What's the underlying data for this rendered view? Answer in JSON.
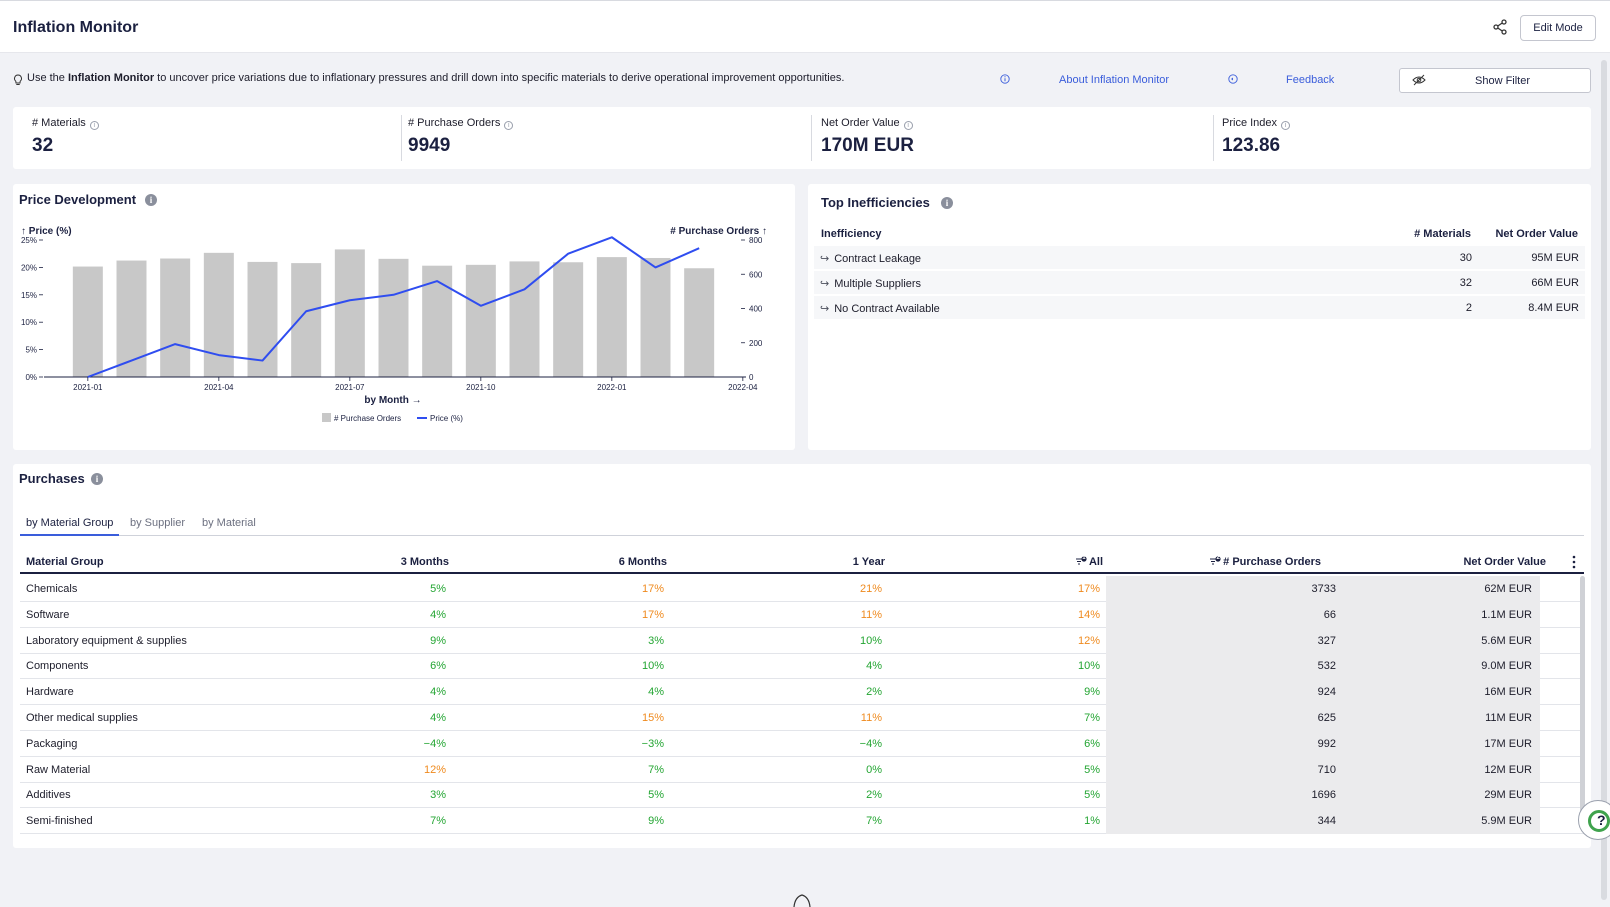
{
  "header": {
    "title": "Inflation Monitor",
    "share_icon": "share-icon",
    "edit_button": "Edit Mode"
  },
  "info_bar": {
    "intro_prefix": "Use the ",
    "intro_bold": "Inflation Monitor",
    "intro_suffix": " to uncover price variations due to inflationary pressures and drill down into specific materials to derive operational improvement opportunities.",
    "about_link": "About Inflation Monitor",
    "feedback_link": "Feedback",
    "show_filter": "Show Filter"
  },
  "kpis": [
    {
      "label": "# Materials",
      "value": "32"
    },
    {
      "label": "# Purchase Orders",
      "value": "9949"
    },
    {
      "label": "Net Order Value",
      "value": "170M EUR"
    },
    {
      "label": "Price Index",
      "value": "123.86"
    }
  ],
  "price_development": {
    "title": "Price Development",
    "info": "i"
  },
  "chart_data": {
    "type": "bar",
    "x": [
      "2021-01",
      "2021-02",
      "2021-03",
      "2021-04",
      "2021-05",
      "2021-06",
      "2021-07",
      "2021-08",
      "2021-09",
      "2021-10",
      "2021-11",
      "2021-12",
      "2022-01",
      "2022-02",
      "2022-03"
    ],
    "x_ticks": [
      "2021-01",
      "2021-04",
      "2021-07",
      "2021-10",
      "2022-01",
      "2022-04"
    ],
    "xlabel": "by Month →",
    "y_left_label": "↑ Price (%)",
    "y_right_label": "# Purchase Orders ↑",
    "y_left_ticks": [
      "0%",
      "5%",
      "10%",
      "15%",
      "20%",
      "25%"
    ],
    "y_right_ticks": [
      "0",
      "200",
      "400",
      "600",
      "800"
    ],
    "ylim_left": [
      0,
      25
    ],
    "ylim_right": [
      0,
      800
    ],
    "series": [
      {
        "name": "# Purchase Orders",
        "type": "bar",
        "axis": "right",
        "color": "#c8c8c8",
        "values": [
          645,
          680,
          692,
          725,
          672,
          665,
          745,
          690,
          650,
          655,
          675,
          670,
          700,
          695,
          635
        ]
      },
      {
        "name": "Price (%)",
        "type": "line",
        "axis": "left",
        "color": "#2f4df0",
        "values": [
          0,
          3,
          6,
          4,
          3,
          12,
          14,
          15,
          17.5,
          13,
          16,
          22.5,
          25.5,
          20,
          23.5
        ]
      }
    ],
    "legend": "bottom-center",
    "grid": false
  },
  "top_inefficiencies": {
    "title": "Top Inefficiencies",
    "info": "i",
    "headers": {
      "name": "Inefficiency",
      "materials": "# Materials",
      "value": "Net Order Value"
    },
    "arrow": "↪",
    "rows": [
      {
        "name": "Contract Leakage",
        "materials": "30",
        "value": "95M EUR"
      },
      {
        "name": "Multiple Suppliers",
        "materials": "32",
        "value": "66M EUR"
      },
      {
        "name": "No Contract Available",
        "materials": "2",
        "value": "8.4M EUR"
      }
    ]
  },
  "purchases": {
    "title": "Purchases",
    "info": "i",
    "tabs": [
      "by Material Group",
      "by Supplier",
      "by Material"
    ],
    "headers": {
      "group": "Material Group",
      "m3": "3 Months",
      "m6": "6 Months",
      "y1": "1 Year",
      "all": "All",
      "all_sort_rank": "1",
      "orders": "# Purchase Orders",
      "orders_sort_rank": "2",
      "value": "Net Order Value"
    },
    "rows": [
      {
        "group": "Chemicals",
        "m3": "5%",
        "m6": "17%",
        "y1": "21%",
        "all": "17%",
        "orders": "3733",
        "value": "62M EUR",
        "c": [
          "g",
          "o",
          "o",
          "o"
        ]
      },
      {
        "group": "Software",
        "m3": "4%",
        "m6": "17%",
        "y1": "11%",
        "all": "14%",
        "orders": "66",
        "value": "1.1M EUR",
        "c": [
          "g",
          "o",
          "o",
          "o"
        ]
      },
      {
        "group": "Laboratory equipment & supplies",
        "m3": "9%",
        "m6": "3%",
        "y1": "10%",
        "all": "12%",
        "orders": "327",
        "value": "5.6M EUR",
        "c": [
          "g",
          "g",
          "g",
          "o"
        ]
      },
      {
        "group": "Components",
        "m3": "6%",
        "m6": "10%",
        "y1": "4%",
        "all": "10%",
        "orders": "532",
        "value": "9.0M EUR",
        "c": [
          "g",
          "g",
          "g",
          "g"
        ]
      },
      {
        "group": "Hardware",
        "m3": "4%",
        "m6": "4%",
        "y1": "2%",
        "all": "9%",
        "orders": "924",
        "value": "16M EUR",
        "c": [
          "g",
          "g",
          "g",
          "g"
        ]
      },
      {
        "group": "Other medical supplies",
        "m3": "4%",
        "m6": "15%",
        "y1": "11%",
        "all": "7%",
        "orders": "625",
        "value": "11M EUR",
        "c": [
          "g",
          "o",
          "o",
          "g"
        ]
      },
      {
        "group": "Packaging",
        "m3": "−4%",
        "m6": "−3%",
        "y1": "−4%",
        "all": "6%",
        "orders": "992",
        "value": "17M EUR",
        "c": [
          "g",
          "g",
          "g",
          "g"
        ]
      },
      {
        "group": "Raw Material",
        "m3": "12%",
        "m6": "7%",
        "y1": "0%",
        "all": "5%",
        "orders": "710",
        "value": "12M EUR",
        "c": [
          "o",
          "g",
          "g",
          "g"
        ]
      },
      {
        "group": "Additives",
        "m3": "3%",
        "m6": "5%",
        "y1": "2%",
        "all": "5%",
        "orders": "1696",
        "value": "29M EUR",
        "c": [
          "g",
          "g",
          "g",
          "g"
        ]
      },
      {
        "group": "Semi-finished",
        "m3": "7%",
        "m6": "9%",
        "y1": "7%",
        "all": "1%",
        "orders": "344",
        "value": "5.9M EUR",
        "c": [
          "g",
          "g",
          "g",
          "g"
        ]
      }
    ]
  },
  "help_button": "?"
}
